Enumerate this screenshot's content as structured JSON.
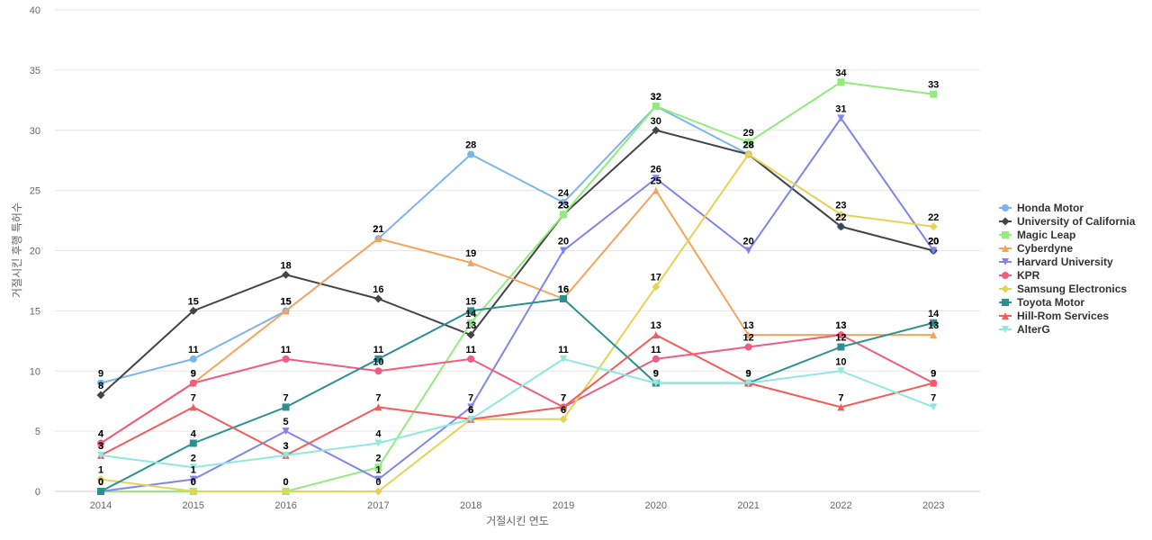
{
  "chart_data": {
    "type": "line",
    "xlabel": "거절시킨 연도",
    "ylabel": "거절시킨 후행 특허수",
    "ylim": [
      0,
      40
    ],
    "yticks": [
      0,
      5,
      10,
      15,
      20,
      25,
      30,
      35,
      40
    ],
    "grid": true,
    "legend_position": "right",
    "categories": [
      "2014",
      "2015",
      "2016",
      "2017",
      "2018",
      "2019",
      "2020",
      "2021",
      "2022",
      "2023"
    ],
    "series": [
      {
        "name": "Honda Motor",
        "color": "#7cb5ec",
        "marker": "circle",
        "values": [
          9,
          11,
          15,
          21,
          28,
          24,
          32,
          28,
          22,
          20
        ]
      },
      {
        "name": "University of California",
        "color": "#434348",
        "marker": "diamond",
        "values": [
          8,
          15,
          18,
          16,
          13,
          23,
          30,
          28,
          22,
          20
        ]
      },
      {
        "name": "Magic Leap",
        "color": "#90ed7d",
        "marker": "square",
        "values": [
          0,
          0,
          0,
          2,
          14,
          23,
          32,
          29,
          34,
          33
        ]
      },
      {
        "name": "Cyberdyne",
        "color": "#f7a35c",
        "marker": "triangle",
        "values": [
          4,
          9,
          15,
          21,
          19,
          16,
          25,
          13,
          13,
          13
        ]
      },
      {
        "name": "Harvard University",
        "color": "#8085e9",
        "marker": "triangle-down",
        "values": [
          0,
          1,
          5,
          1,
          7,
          20,
          26,
          20,
          31,
          20
        ]
      },
      {
        "name": "KPR",
        "color": "#f15c80",
        "marker": "circle",
        "values": [
          4,
          9,
          11,
          10,
          11,
          7,
          11,
          12,
          13,
          9
        ]
      },
      {
        "name": "Samsung Electronics",
        "color": "#e4d354",
        "marker": "diamond",
        "values": [
          1,
          0,
          0,
          0,
          6,
          6,
          17,
          28,
          23,
          22
        ]
      },
      {
        "name": "Toyota Motor",
        "color": "#2b908f",
        "marker": "square",
        "values": [
          0,
          4,
          7,
          11,
          15,
          16,
          9,
          9,
          12,
          14
        ]
      },
      {
        "name": "Hill-Rom Services",
        "color": "#f45b5b",
        "marker": "triangle",
        "values": [
          3,
          7,
          3,
          7,
          6,
          7,
          13,
          9,
          7,
          9
        ]
      },
      {
        "name": "AlterG",
        "color": "#91e8e1",
        "marker": "triangle-down",
        "values": [
          3,
          2,
          3,
          4,
          6,
          11,
          9,
          9,
          10,
          7
        ]
      }
    ]
  }
}
